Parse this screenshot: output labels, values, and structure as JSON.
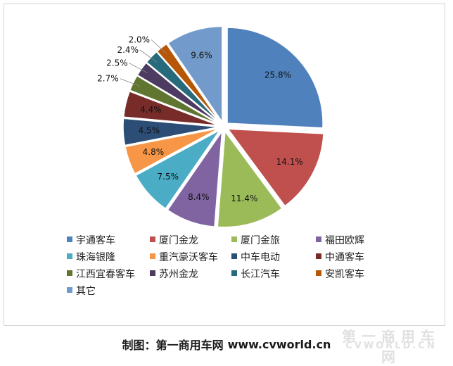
{
  "chart_data": {
    "type": "pie",
    "title": "",
    "categories": [
      "宇通客车",
      "厦门金龙",
      "厦门金旅",
      "福田欧辉",
      "珠海银隆",
      "重汽豪沃客车",
      "中车电动",
      "中通客车",
      "江西宜春客车",
      "苏州金龙",
      "长江汽车",
      "安凯客车",
      "其它"
    ],
    "values": [
      25.8,
      14.1,
      11.4,
      8.4,
      7.5,
      4.8,
      4.5,
      4.4,
      2.7,
      2.5,
      2.4,
      2.0,
      9.6
    ],
    "value_labels": [
      "25.8%",
      "14.1%",
      "11.4%",
      "8.4%",
      "7.5%",
      "4.8%",
      "4.5%",
      "4.4%",
      "2.7%",
      "2.5%",
      "2.4%",
      "2.0%",
      "9.6%"
    ],
    "colors": [
      "#4f81bd",
      "#c0504d",
      "#9bbb59",
      "#8064a2",
      "#4bacc6",
      "#f79646",
      "#2c4d75",
      "#772c2a",
      "#5f7530",
      "#4d3b62",
      "#276a7c",
      "#b65708",
      "#729aca"
    ],
    "legend_position": "bottom"
  },
  "footer": {
    "caption_prefix": "制图：",
    "caption_site": "第一商用车网",
    "caption_url": "www.cvworld.cn"
  },
  "watermark": {
    "text_cn": "第一商用车网",
    "text_en": "CVWORLD.CN"
  }
}
